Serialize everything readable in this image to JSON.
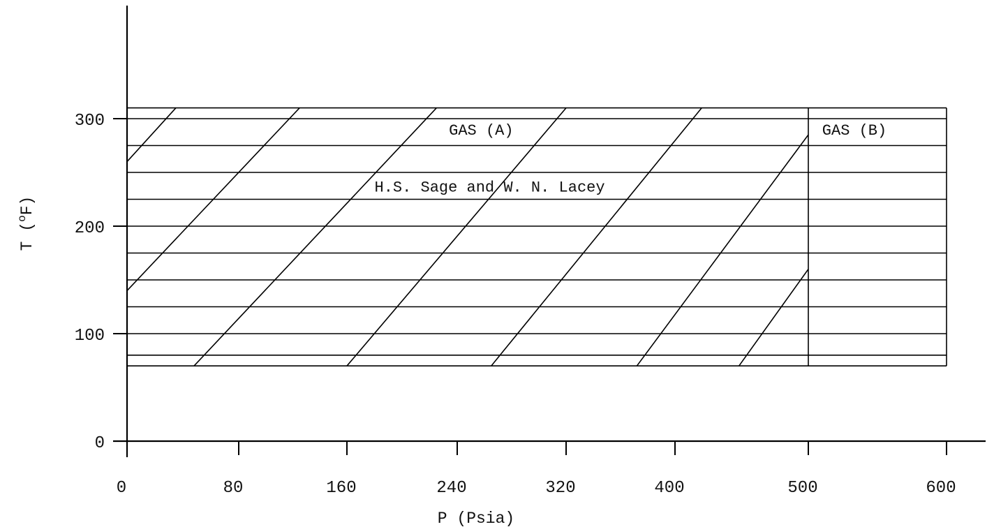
{
  "chart_data": {
    "type": "line",
    "xlabel": "P (Psia)",
    "ylabel_main": "T (",
    "ylabel_sup": "o",
    "ylabel_end": "F)",
    "x_ticks": [
      {
        "value": 0,
        "label": "0"
      },
      {
        "value": 80,
        "label": "80"
      },
      {
        "value": 160,
        "label": "160"
      },
      {
        "value": 240,
        "label": "240"
      },
      {
        "value": 320,
        "label": "320"
      },
      {
        "value": 400,
        "label": "400"
      },
      {
        "value": 500,
        "label": "500"
      },
      {
        "value": 600,
        "label": "600"
      }
    ],
    "y_ticks": [
      {
        "value": 0,
        "label": "0"
      },
      {
        "value": 100,
        "label": "100"
      },
      {
        "value": 200,
        "label": "200"
      },
      {
        "value": 300,
        "label": "300"
      }
    ],
    "xlim": [
      0,
      600
    ],
    "ylim": [
      0,
      300
    ],
    "isotherms": [
      70,
      80,
      100,
      125,
      150,
      175,
      200,
      225,
      250,
      275,
      300,
      310
    ],
    "grid_p_range": [
      0,
      600
    ],
    "region_boundary_p": 500,
    "region_boundary_t": [
      70,
      310
    ],
    "diagonal_lines": [
      {
        "x": [
          0,
          35
        ],
        "y": [
          260,
          310
        ]
      },
      {
        "x": [
          0,
          125
        ],
        "y": [
          140,
          310
        ]
      },
      {
        "x": [
          48,
          225
        ],
        "y": [
          70,
          310
        ]
      },
      {
        "x": [
          160,
          320
        ],
        "y": [
          70,
          310
        ]
      },
      {
        "x": [
          265,
          420
        ],
        "y": [
          70,
          310
        ]
      },
      {
        "x": [
          372,
          500
        ],
        "y": [
          70,
          285
        ]
      },
      {
        "x": [
          448,
          500
        ],
        "y": [
          70,
          160
        ]
      }
    ],
    "annotations": [
      {
        "text": "GAS (A)",
        "p": 234,
        "t": 285
      },
      {
        "text": "GAS (B)",
        "p": 510,
        "t": 285
      },
      {
        "text": "H.S. Sage and W. N. Lacey",
        "p": 180,
        "t": 232
      }
    ]
  }
}
